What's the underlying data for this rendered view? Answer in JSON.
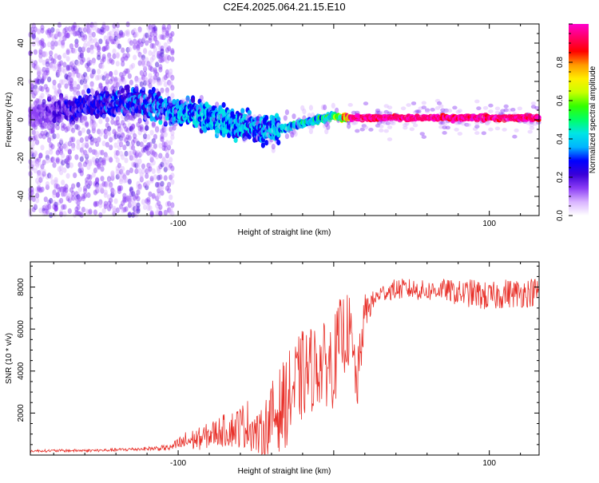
{
  "title": "C2E4.2025.064.21.15.E10",
  "colors": {
    "snr_line": "#e8312a",
    "axis": "#000000",
    "spectrogram_scale": [
      "#ffffff",
      "#d9b3ff",
      "#8b3df5",
      "#3a00d8",
      "#0000ff",
      "#00b4ff",
      "#00e5e5",
      "#00ff66",
      "#33ff00",
      "#c8ff00",
      "#ffee00",
      "#ff9900",
      "#ff0000",
      "#ff0066",
      "#ff00cc"
    ]
  },
  "chart_data": [
    {
      "type": "heatmap",
      "title": "",
      "xlabel": "Height of straight line (km)",
      "ylabel": "Frequency (Hz)",
      "xlim": [
        -195,
        132
      ],
      "ylim": [
        -50,
        50
      ],
      "x_ticks": [
        "-100",
        "100"
      ],
      "y_ticks": [
        "-40",
        "-20",
        "0",
        "20",
        "40"
      ],
      "colorbar": {
        "label": "Normalized spectral amplitude",
        "range": [
          0.0,
          1.0
        ],
        "ticks": [
          "0.0",
          "0.2",
          "0.4",
          "0.6",
          "0.8"
        ]
      },
      "ridge": {
        "x": [
          -195,
          -160,
          -130,
          -105,
          -90,
          -75,
          -60,
          -45,
          -35,
          -20,
          -10,
          0,
          5,
          10,
          50,
          100,
          132
        ],
        "freq_hz": [
          2,
          7,
          10,
          5,
          3,
          0,
          -3,
          -6,
          -5,
          -2,
          0,
          2,
          1,
          1,
          1,
          1,
          1
        ],
        "amplitude": [
          0.15,
          0.3,
          0.35,
          0.4,
          0.45,
          0.45,
          0.45,
          0.4,
          0.45,
          0.5,
          0.55,
          0.6,
          0.8,
          0.95,
          0.95,
          0.95,
          0.95
        ]
      }
    },
    {
      "type": "line",
      "title": "",
      "xlabel": "Height of straight line (km)",
      "ylabel": "SNR (10 * v/v)",
      "xlim": [
        -195,
        132
      ],
      "ylim": [
        0,
        9200
      ],
      "x_ticks": [
        "-100",
        "100"
      ],
      "y_ticks": [
        "2000",
        "4000",
        "6000",
        "8000"
      ],
      "series": [
        {
          "x": [
            -195,
            -150,
            -120,
            -105,
            -95,
            -85,
            -75,
            -65,
            -55,
            -48,
            -40,
            -30,
            -20,
            -10,
            -5,
            0,
            5,
            10,
            15,
            20,
            25,
            30,
            40,
            50,
            60,
            70,
            80,
            90,
            100,
            110,
            120,
            132
          ],
          "values": [
            200,
            220,
            300,
            350,
            650,
            800,
            1100,
            1250,
            1500,
            900,
            1700,
            2600,
            3800,
            4300,
            4300,
            4400,
            5700,
            5900,
            3300,
            6800,
            7300,
            7700,
            7900,
            7900,
            7800,
            7900,
            7700,
            7700,
            7500,
            7700,
            7700,
            7800
          ],
          "jitter": [
            60,
            70,
            90,
            150,
            500,
            550,
            700,
            900,
            1200,
            1000,
            1800,
            2200,
            2200,
            2000,
            2000,
            2200,
            2000,
            1800,
            1500,
            900,
            500,
            400,
            500,
            500,
            500,
            500,
            600,
            700,
            700,
            700,
            700,
            700
          ]
        }
      ]
    }
  ]
}
